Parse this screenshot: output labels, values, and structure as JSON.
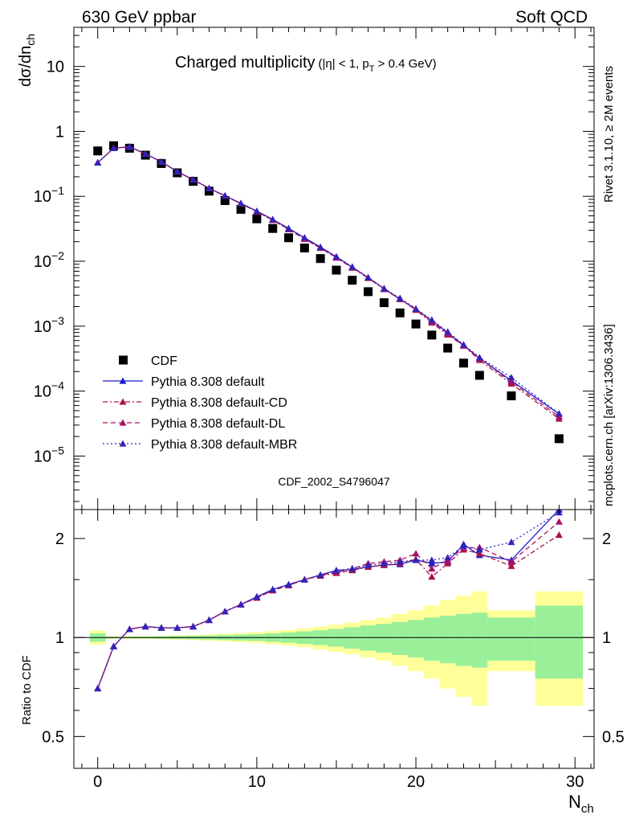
{
  "header": {
    "left": "630 GeV ppbar",
    "right": "Soft QCD"
  },
  "title": {
    "main": "Charged multiplicity",
    "cuts": "(|η| < 1, p",
    "cuts_sub": "T",
    "cuts_tail": " > 0.4 GeV)"
  },
  "side_text": {
    "rivet": "Rivet 3.1.10, ≥ 2M events",
    "mcplots": "mcplots.cern.ch [arXiv:1306.3436]"
  },
  "analysis_id": "CDF_2002_S4796047",
  "axes": {
    "ylabel_main": "dσ/dn",
    "ylabel_main_sub": "ch",
    "ylabel_ratio": "Ratio to CDF",
    "xlabel": "N",
    "xlabel_sub": "ch"
  },
  "colors": {
    "data": "#000000",
    "default": "#1f1fcc",
    "cd": "#aa1144",
    "dl": "#aa1166",
    "mbr": "#3322bb",
    "band_inner": "#99f099",
    "band_outer": "#ffff99"
  },
  "chart_data": [
    {
      "type": "scatter",
      "panel": "main",
      "yscale": "log",
      "xlim": [
        -1.5,
        31.2
      ],
      "ylim": [
        1.5e-06,
        40
      ],
      "x_ticks": [
        0,
        10,
        20,
        30
      ],
      "y_ticks": [
        {
          "value": 10,
          "label": "10"
        },
        {
          "value": 1,
          "label": "1"
        },
        {
          "value": 0.1,
          "base": "10",
          "exp": "−1"
        },
        {
          "value": 0.01,
          "base": "10",
          "exp": "−2"
        },
        {
          "value": 0.001,
          "base": "10",
          "exp": "−3"
        },
        {
          "value": 0.0001,
          "base": "10",
          "exp": "−4"
        },
        {
          "value": 1e-05,
          "base": "10",
          "exp": "−5"
        }
      ],
      "legend_position": "bottom-left",
      "series": [
        {
          "name": "CDF",
          "style": "data",
          "x": [
            0,
            1,
            2,
            3,
            4,
            5,
            6,
            7,
            8,
            9,
            10,
            11,
            12,
            13,
            14,
            15,
            16,
            17,
            18,
            19,
            20,
            21,
            22,
            23,
            24,
            26,
            29
          ],
          "y": [
            0.5,
            0.6,
            0.55,
            0.43,
            0.32,
            0.23,
            0.17,
            0.12,
            0.086,
            0.063,
            0.045,
            0.032,
            0.023,
            0.016,
            0.011,
            0.0073,
            0.0051,
            0.0034,
            0.0023,
            0.0016,
            0.00108,
            0.00073,
            0.00046,
            0.00027,
            0.000175,
            8.45e-05,
            1.85e-05
          ]
        },
        {
          "name": "Pythia 8.308 default",
          "style": "default",
          "x": [
            0,
            1,
            2,
            3,
            4,
            5,
            6,
            7,
            8,
            9,
            10,
            11,
            12,
            13,
            14,
            15,
            16,
            17,
            18,
            19,
            20,
            21,
            22,
            23,
            24,
            26,
            29
          ],
          "y": [
            0.33,
            0.55,
            0.58,
            0.45,
            0.34,
            0.24,
            0.18,
            0.133,
            0.102,
            0.078,
            0.059,
            0.044,
            0.032,
            0.023,
            0.0165,
            0.0117,
            0.0081,
            0.0056,
            0.0038,
            0.0026,
            0.00183,
            0.00121,
            0.00079,
            0.00051,
            0.00032,
            0.000145,
            4.45e-05
          ]
        },
        {
          "name": "Pythia 8.308 default-CD",
          "style": "cd",
          "x": [
            0,
            1,
            2,
            3,
            4,
            5,
            6,
            7,
            8,
            9,
            10,
            11,
            12,
            13,
            14,
            15,
            16,
            17,
            18,
            19,
            20,
            21,
            22,
            23,
            24,
            26,
            29
          ],
          "y": [
            0.33,
            0.55,
            0.58,
            0.45,
            0.34,
            0.24,
            0.18,
            0.133,
            0.101,
            0.077,
            0.058,
            0.043,
            0.031,
            0.022,
            0.016,
            0.0113,
            0.0079,
            0.0055,
            0.0037,
            0.0026,
            0.00178,
            0.00113,
            0.00074,
            0.0005,
            0.0003,
            0.00013,
            3.75e-05
          ]
        },
        {
          "name": "Pythia 8.308 default-DL",
          "style": "dl",
          "x": [
            0,
            1,
            2,
            3,
            4,
            5,
            6,
            7,
            8,
            9,
            10,
            11,
            12,
            13,
            14,
            15,
            16,
            17,
            18,
            19,
            20,
            21,
            22,
            23,
            24,
            26,
            29
          ],
          "y": [
            0.33,
            0.55,
            0.58,
            0.45,
            0.34,
            0.24,
            0.18,
            0.133,
            0.101,
            0.077,
            0.058,
            0.043,
            0.031,
            0.022,
            0.016,
            0.0114,
            0.008,
            0.0056,
            0.0038,
            0.0026,
            0.00185,
            0.00118,
            0.00077,
            0.0005,
            0.00032,
            0.000138,
            4.05e-05
          ]
        },
        {
          "name": "Pythia 8.308 default-MBR",
          "style": "mbr",
          "x": [
            0,
            1,
            2,
            3,
            4,
            5,
            6,
            7,
            8,
            9,
            10,
            11,
            12,
            13,
            14,
            15,
            16,
            17,
            18,
            19,
            20,
            21,
            22,
            23,
            24,
            26,
            29
          ],
          "y": [
            0.33,
            0.55,
            0.58,
            0.45,
            0.34,
            0.24,
            0.18,
            0.133,
            0.102,
            0.078,
            0.059,
            0.044,
            0.032,
            0.023,
            0.0165,
            0.0118,
            0.0082,
            0.0056,
            0.0038,
            0.0027,
            0.00185,
            0.00125,
            0.00082,
            0.00052,
            0.00033,
            0.000162,
            4.5e-05
          ]
        }
      ]
    },
    {
      "type": "line",
      "panel": "ratio",
      "yscale": "log",
      "xlim": [
        -1.5,
        31.2
      ],
      "ylim": [
        0.4,
        2.45
      ],
      "x_ticks": [
        {
          "value": 0,
          "label": "0"
        },
        {
          "value": 10,
          "label": "10"
        },
        {
          "value": 20,
          "label": "20"
        },
        {
          "value": 30,
          "label": "30"
        }
      ],
      "y_ticks": [
        {
          "value": 2,
          "label": "2"
        },
        {
          "value": 1,
          "label": "1"
        },
        {
          "value": 0.5,
          "label": "0.5"
        }
      ],
      "band": {
        "edges": [
          -0.5,
          0.5,
          1.5,
          2.5,
          3.5,
          4.5,
          5.5,
          6.5,
          7.5,
          8.5,
          9.5,
          10.5,
          11.5,
          12.5,
          13.5,
          14.5,
          15.5,
          16.5,
          17.5,
          18.5,
          19.5,
          20.5,
          21.5,
          22.5,
          23.5,
          24.5,
          27.5,
          30.5
        ],
        "inner": [
          0.03,
          0.006,
          0.006,
          0.006,
          0.008,
          0.01,
          0.012,
          0.014,
          0.017,
          0.02,
          0.024,
          0.03,
          0.036,
          0.044,
          0.052,
          0.062,
          0.075,
          0.088,
          0.1,
          0.115,
          0.13,
          0.15,
          0.165,
          0.18,
          0.19,
          0.15,
          0.25
        ],
        "outer": [
          0.05,
          0.01,
          0.01,
          0.01,
          0.012,
          0.015,
          0.018,
          0.022,
          0.027,
          0.032,
          0.038,
          0.046,
          0.055,
          0.066,
          0.08,
          0.095,
          0.11,
          0.13,
          0.15,
          0.18,
          0.21,
          0.25,
          0.3,
          0.34,
          0.38,
          0.21,
          0.38
        ]
      },
      "series": [
        {
          "name": "Pythia 8.308 default",
          "style": "default",
          "x": [
            0,
            1,
            2,
            3,
            4,
            5,
            6,
            7,
            8,
            9,
            10,
            11,
            12,
            13,
            14,
            15,
            16,
            17,
            18,
            19,
            20,
            21,
            22,
            23,
            24,
            26,
            29
          ],
          "y": [
            0.7,
            0.94,
            1.06,
            1.08,
            1.07,
            1.07,
            1.08,
            1.13,
            1.2,
            1.26,
            1.33,
            1.4,
            1.45,
            1.5,
            1.55,
            1.6,
            1.61,
            1.64,
            1.66,
            1.67,
            1.72,
            1.68,
            1.7,
            1.92,
            1.78,
            1.72,
            2.45
          ]
        },
        {
          "name": "Pythia 8.308 default-CD",
          "style": "cd",
          "x": [
            0,
            1,
            2,
            3,
            4,
            5,
            6,
            7,
            8,
            9,
            10,
            11,
            12,
            13,
            14,
            15,
            16,
            17,
            18,
            19,
            20,
            21,
            22,
            23,
            24,
            26,
            29
          ],
          "y": [
            0.7,
            0.94,
            1.06,
            1.08,
            1.07,
            1.07,
            1.08,
            1.13,
            1.2,
            1.26,
            1.32,
            1.39,
            1.44,
            1.5,
            1.54,
            1.57,
            1.6,
            1.64,
            1.66,
            1.68,
            1.73,
            1.53,
            1.68,
            1.85,
            1.8,
            1.65,
            2.05
          ]
        },
        {
          "name": "Pythia 8.308 default-DL",
          "style": "dl",
          "x": [
            0,
            1,
            2,
            3,
            4,
            5,
            6,
            7,
            8,
            9,
            10,
            11,
            12,
            13,
            14,
            15,
            16,
            17,
            18,
            19,
            20,
            21,
            22,
            23,
            24,
            26,
            29
          ],
          "y": [
            0.7,
            0.94,
            1.06,
            1.08,
            1.07,
            1.07,
            1.08,
            1.13,
            1.2,
            1.26,
            1.32,
            1.39,
            1.44,
            1.5,
            1.55,
            1.58,
            1.62,
            1.68,
            1.7,
            1.72,
            1.8,
            1.62,
            1.72,
            1.87,
            1.88,
            1.7,
            2.25
          ]
        },
        {
          "name": "Pythia 8.308 default-MBR",
          "style": "mbr",
          "x": [
            0,
            1,
            2,
            3,
            4,
            5,
            6,
            7,
            8,
            9,
            10,
            11,
            12,
            13,
            14,
            15,
            16,
            17,
            18,
            19,
            20,
            21,
            22,
            23,
            24,
            26,
            29
          ],
          "y": [
            0.7,
            0.94,
            1.06,
            1.08,
            1.07,
            1.07,
            1.08,
            1.13,
            1.2,
            1.26,
            1.33,
            1.4,
            1.45,
            1.5,
            1.55,
            1.6,
            1.62,
            1.66,
            1.68,
            1.7,
            1.72,
            1.72,
            1.75,
            1.9,
            1.85,
            1.95,
            2.4
          ]
        }
      ]
    }
  ]
}
